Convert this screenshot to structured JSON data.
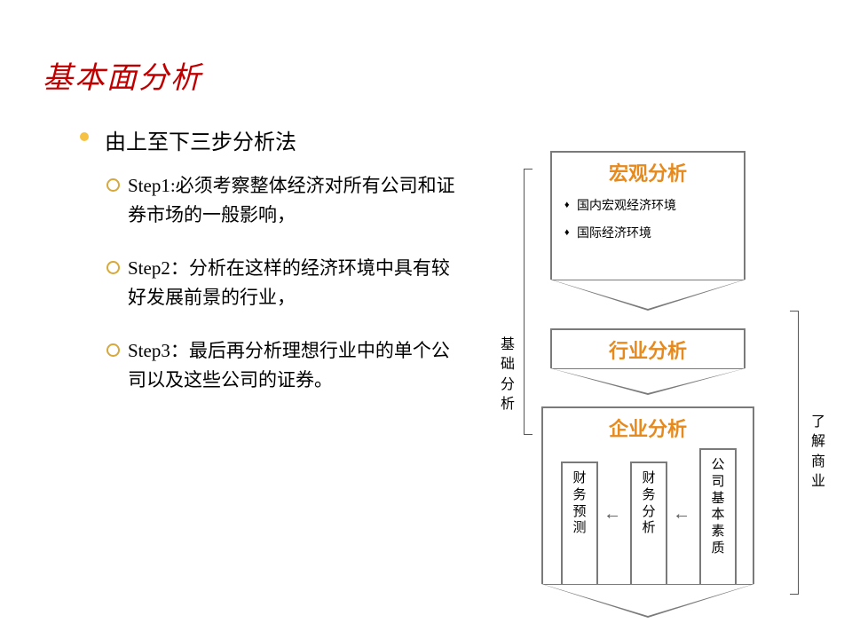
{
  "title": "基本面分析",
  "main_bullet": "由上至下三步分析法",
  "steps": [
    "Step1:必须考察整体经济对所有公司和证券市场的一般影响，",
    "Step2：分析在这样的经济环境中具有较好发展前景的行业，",
    "Step3：最后再分析理想行业中的单个公司以及这些公司的证券。"
  ],
  "left_side_label": "基础分析",
  "right_side_label": "了解商业",
  "box1": {
    "title": "宏观分析",
    "items": [
      "国内宏观经济环境",
      "国际经济环境"
    ]
  },
  "box2_title": "行业分析",
  "box3": {
    "title": "企业分析",
    "inner": [
      "财务预测",
      "财务分析",
      "公司基本素质"
    ]
  },
  "colors": {
    "title": "#c00000",
    "bullet": "#f6c244",
    "ring": "#d7a83a",
    "box_border": "#7a7a7a",
    "accent": "#e68a1e",
    "text": "#000000",
    "bg": "#ffffff"
  },
  "fontsizes": {
    "title": 34,
    "main": 24,
    "sub": 21,
    "box_head": 22,
    "item": 14,
    "vlabel": 16,
    "inner": 15
  }
}
